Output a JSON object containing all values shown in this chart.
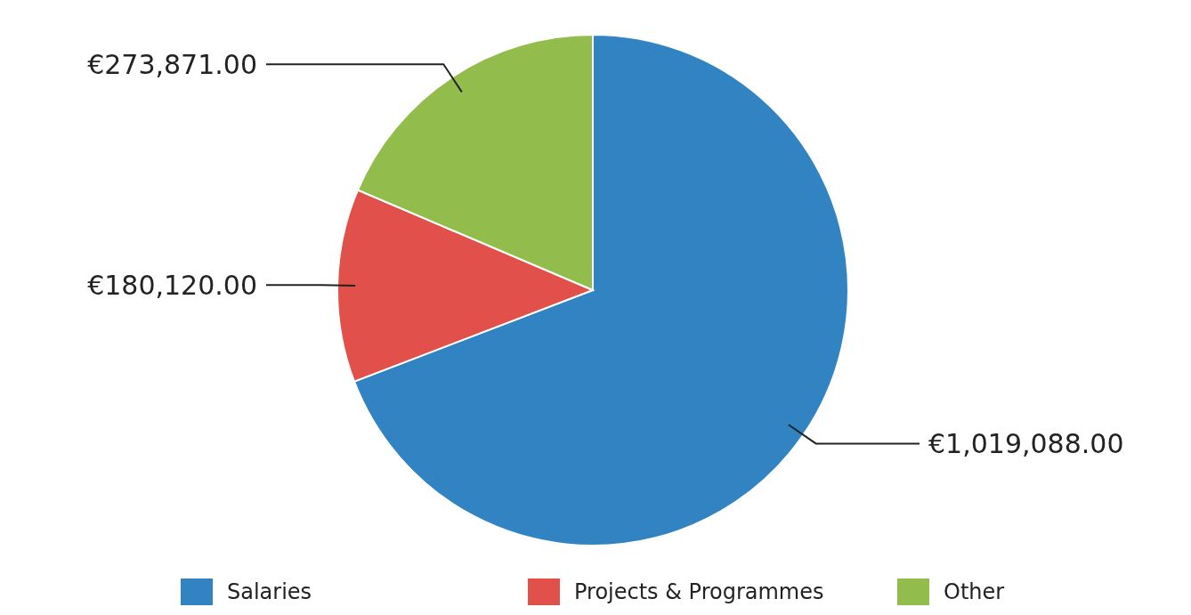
{
  "chart_data": {
    "type": "pie",
    "categories": [
      "Salaries",
      "Projects & Programmes",
      "Other"
    ],
    "values": [
      1019088,
      180120,
      273871
    ],
    "colors": [
      "#3184c1",
      "#e1504a",
      "#92bc4b"
    ],
    "value_labels": [
      "€1,019,088.00",
      "€180,120.00",
      "€273,871.00"
    ],
    "legend": "bottom"
  }
}
